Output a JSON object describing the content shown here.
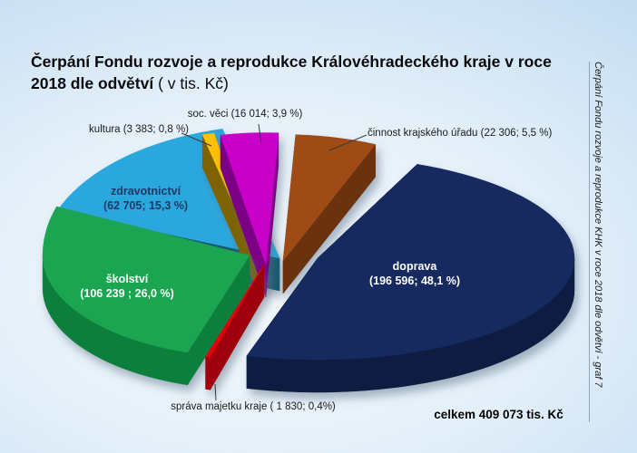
{
  "title": {
    "main": "Čerpání Fondu rozvoje a reprodukce Královéhradeckého kraje v roce 2018 dle odvětví",
    "suffix": " ( v tis. Kč)"
  },
  "side_note": "Čerpání Fondu rozvoje a reprodukce KHK v roce 2018 dle odvětví - graf 7",
  "total_text": "celkem 409 073 tis. Kč",
  "background": {
    "edge_color": "#A9CFEC",
    "center_color": "#F8FBFE"
  },
  "chart_data": {
    "type": "pie",
    "title": "Čerpání Fondu rozvoje a reprodukce Královéhradeckého kraje v roce 2018 dle odvětví ( v tis. Kč)",
    "unit": "tis. Kč",
    "total": 409073,
    "total_label": "celkem 409 073 tis. Kč",
    "style": "3d-exploded",
    "start_angle_deg": -101,
    "direction": "clockwise",
    "legend_position": "none",
    "slices": [
      {
        "id": "soc_veci",
        "label": "soc. věci",
        "value": 16014,
        "pct": 3.9,
        "callout": "soc. věci (16 014; 3,9 %)",
        "color": "#C800C8",
        "side_color": "#7B0086"
      },
      {
        "id": "cinnost_krajskeho_uradu",
        "label": "činnost krajského úřadu",
        "value": 22306,
        "pct": 5.5,
        "callout": "činnost krajského úřadu (22 306; 5,5 %)",
        "color": "#9E4B17",
        "side_color": "#6B3209"
      },
      {
        "id": "doprava",
        "label": "doprava",
        "value": 196596,
        "pct": 48.1,
        "value_text": "(196 596; 48,1 %)",
        "color": "#122A61",
        "side_color": "#0A1A40"
      },
      {
        "id": "sprava_majetku_kraje",
        "label": "správa majetku kraje",
        "value": 1830,
        "pct": 0.4,
        "callout": "správa majetku kraje ( 1 830; 0,4%)",
        "color": "#E3000F",
        "side_color": "#9E0008"
      },
      {
        "id": "skolstvi",
        "label": "školství",
        "value": 106239,
        "pct": 26.0,
        "value_text": "(106 239 ; 26,0 %)",
        "color": "#1FA551",
        "side_color": "#0F7F3C"
      },
      {
        "id": "zdravotnictvi",
        "label": "zdravotnictví",
        "value": 62705,
        "pct": 15.3,
        "value_text": "(62 705; 15,3 %)",
        "color": "#29A8DE",
        "side_color": "#14586F"
      },
      {
        "id": "kultura",
        "label": "kultura",
        "value": 3383,
        "pct": 0.8,
        "callout": "kultura (3 383; 0,8 %)",
        "color": "#FFC103",
        "side_color": "#7E6300"
      }
    ]
  }
}
